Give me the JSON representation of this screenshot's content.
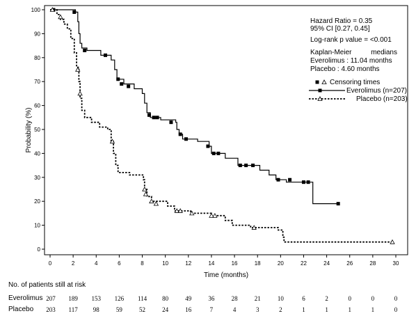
{
  "chart_data": {
    "type": "line",
    "xlabel": "Time (months)",
    "ylabel": "Probability (%)",
    "xlim": [
      0,
      30
    ],
    "ylim": [
      0,
      100
    ],
    "xticks": [
      0,
      2,
      4,
      6,
      8,
      10,
      12,
      14,
      16,
      18,
      20,
      22,
      24,
      26,
      28,
      30
    ],
    "yticks": [
      0,
      10,
      20,
      30,
      40,
      50,
      60,
      70,
      80,
      90,
      100
    ],
    "grid": false,
    "annotations": {
      "hazard_ratio": "Hazard Ratio = 0.35",
      "ci": "95% CI [0.27, 0.45]",
      "pvalue": "Log-rank p value = <0.001",
      "km_label": "Kaplan-Meier",
      "medians_label": "medians",
      "everolimus_median": "Everolimus : 11.04 months",
      "placebo_median": "Placebo : 4.60 months"
    },
    "legend": {
      "title": "Censoring times",
      "placement": "right"
    },
    "series": [
      {
        "name": "Everolimus (n=207)",
        "style": "solid",
        "marker": "square",
        "points": [
          [
            0,
            100
          ],
          [
            2.2,
            99
          ],
          [
            2.4,
            95
          ],
          [
            2.5,
            90
          ],
          [
            2.6,
            86
          ],
          [
            2.75,
            84
          ],
          [
            3.2,
            83
          ],
          [
            4.4,
            81
          ],
          [
            5.3,
            79
          ],
          [
            5.6,
            75
          ],
          [
            5.8,
            71
          ],
          [
            6.4,
            69
          ],
          [
            7.3,
            67
          ],
          [
            8.0,
            65
          ],
          [
            8.2,
            61
          ],
          [
            8.4,
            57
          ],
          [
            8.7,
            55
          ],
          [
            9.6,
            54
          ],
          [
            10.9,
            53
          ],
          [
            11.0,
            50
          ],
          [
            11.2,
            48
          ],
          [
            11.5,
            46
          ],
          [
            12.8,
            45
          ],
          [
            13.8,
            43
          ],
          [
            14.0,
            40
          ],
          [
            15.2,
            38
          ],
          [
            16.3,
            35
          ],
          [
            18.2,
            33
          ],
          [
            19.0,
            31
          ],
          [
            19.6,
            29
          ],
          [
            20.5,
            28
          ],
          [
            22.0,
            28
          ],
          [
            22.8,
            19
          ],
          [
            25.0,
            19
          ]
        ],
        "censored": [
          [
            0.3,
            100
          ],
          [
            2.1,
            99
          ],
          [
            3.0,
            83
          ],
          [
            4.8,
            81
          ],
          [
            5.9,
            71
          ],
          [
            6.2,
            69
          ],
          [
            6.8,
            68
          ],
          [
            8.6,
            56
          ],
          [
            9.0,
            55
          ],
          [
            9.3,
            55
          ],
          [
            10.5,
            53
          ],
          [
            11.3,
            48
          ],
          [
            11.8,
            46
          ],
          [
            13.7,
            43
          ],
          [
            14.2,
            40
          ],
          [
            14.6,
            40
          ],
          [
            16.5,
            35
          ],
          [
            17.0,
            35
          ],
          [
            17.6,
            35
          ],
          [
            19.8,
            29
          ],
          [
            20.8,
            29
          ],
          [
            22.0,
            28
          ],
          [
            22.4,
            28
          ],
          [
            25.0,
            19
          ]
        ]
      },
      {
        "name": "Placebo (n=203)",
        "style": "dotted",
        "marker": "triangle",
        "points": [
          [
            0,
            100
          ],
          [
            0.6,
            98
          ],
          [
            0.9,
            96
          ],
          [
            1.2,
            94
          ],
          [
            1.5,
            92
          ],
          [
            1.8,
            88
          ],
          [
            2.1,
            82
          ],
          [
            2.3,
            76
          ],
          [
            2.5,
            70
          ],
          [
            2.6,
            63
          ],
          [
            2.75,
            58
          ],
          [
            3.0,
            55
          ],
          [
            3.6,
            53
          ],
          [
            4.3,
            51
          ],
          [
            5.0,
            50
          ],
          [
            5.3,
            45
          ],
          [
            5.5,
            40
          ],
          [
            5.7,
            35
          ],
          [
            5.9,
            32
          ],
          [
            6.9,
            31
          ],
          [
            8.1,
            29
          ],
          [
            8.2,
            25
          ],
          [
            8.4,
            22
          ],
          [
            8.8,
            20
          ],
          [
            10.2,
            18
          ],
          [
            10.8,
            16
          ],
          [
            12.2,
            15
          ],
          [
            14.0,
            14
          ],
          [
            15.2,
            12
          ],
          [
            15.8,
            10
          ],
          [
            17.4,
            9
          ],
          [
            19.8,
            8
          ],
          [
            20.2,
            5
          ],
          [
            20.3,
            3
          ],
          [
            29.7,
            3
          ]
        ],
        "censored": [
          [
            0.2,
            100
          ],
          [
            0.9,
            97
          ],
          [
            2.4,
            75
          ],
          [
            2.6,
            65
          ],
          [
            5.4,
            45
          ],
          [
            8.2,
            25
          ],
          [
            8.3,
            23
          ],
          [
            8.8,
            20
          ],
          [
            9.2,
            19
          ],
          [
            11.0,
            16
          ],
          [
            11.3,
            16
          ],
          [
            12.3,
            15
          ],
          [
            14.0,
            14
          ],
          [
            14.3,
            14
          ],
          [
            17.7,
            9
          ],
          [
            29.7,
            3
          ]
        ]
      }
    ]
  },
  "risk_table": {
    "title": "No. of patients still at risk",
    "times": [
      0,
      2,
      4,
      6,
      8,
      10,
      12,
      14,
      16,
      18,
      20,
      22,
      24,
      26,
      28,
      30
    ],
    "rows": [
      {
        "label": "Everolimus",
        "values": [
          207,
          189,
          153,
          126,
          114,
          80,
          49,
          36,
          28,
          21,
          10,
          6,
          2,
          0,
          0,
          0
        ]
      },
      {
        "label": "Placebo",
        "values": [
          203,
          117,
          98,
          59,
          52,
          24,
          16,
          7,
          4,
          3,
          2,
          1,
          1,
          1,
          1,
          0
        ]
      }
    ]
  }
}
